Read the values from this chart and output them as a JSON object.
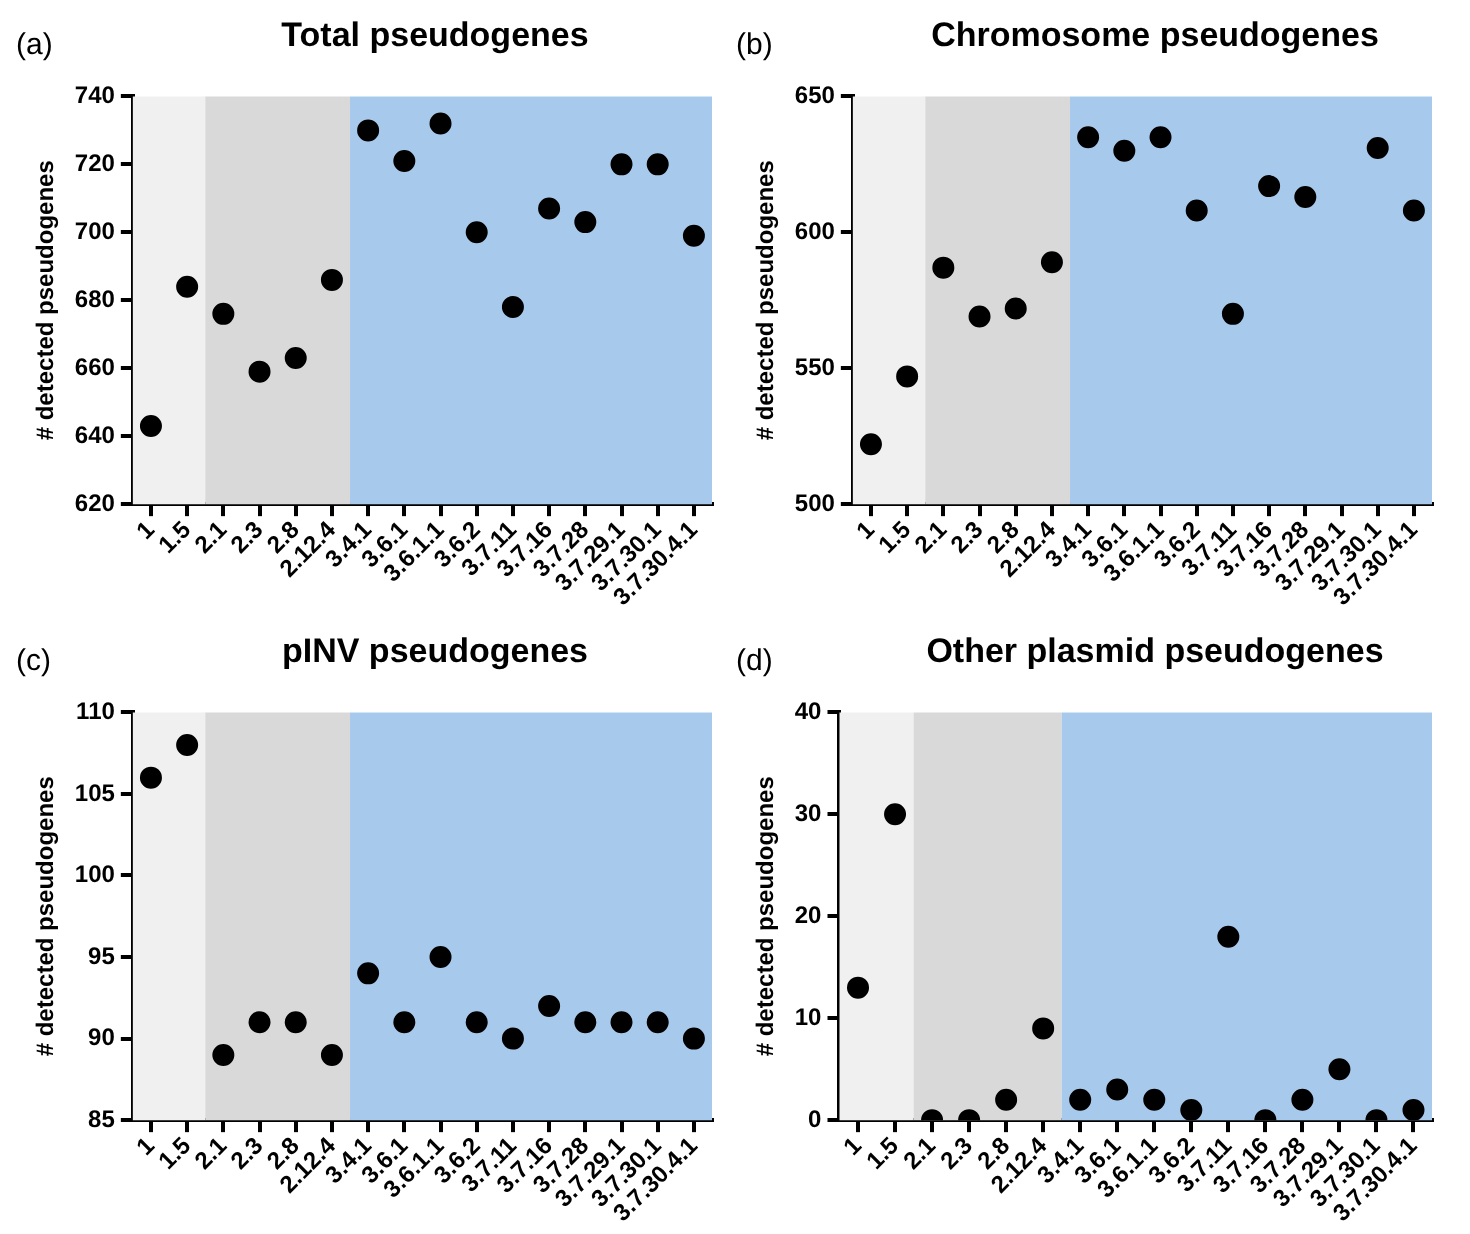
{
  "chart_data": [
    {
      "type": "scatter",
      "title": "Total pseudogenes",
      "ylabel": "# detected pseudogenes",
      "annotations": [
        "(a)"
      ],
      "categories": [
        "1",
        "1.5",
        "2.1",
        "2.3",
        "2.8",
        "2.12.4",
        "3.4.1",
        "3.6.1",
        "3.6.1.1",
        "3.6.2",
        "3.7.11",
        "3.7.16",
        "3.7.28",
        "3.7.29.1",
        "3.7.30.1",
        "3.7.30.4.1"
      ],
      "series": [
        {
          "color": "#000000",
          "values": [
            643,
            684,
            676,
            659,
            663,
            686,
            730,
            721,
            732,
            700,
            678,
            707,
            703,
            720,
            720,
            699
          ]
        }
      ],
      "ylim": [
        620,
        740
      ],
      "yticks": [
        620,
        640,
        660,
        680,
        700,
        720,
        740
      ],
      "grid": false,
      "marker": "circle",
      "bands": [
        {
          "axis": "x",
          "from": "1",
          "to": "1.5",
          "color": "#f0f0f0"
        },
        {
          "axis": "x",
          "from": "2.1",
          "to": "2.12.4",
          "color": "#d9d9d9"
        },
        {
          "axis": "x",
          "from": "3.4.1",
          "to": "3.7.30.4.1",
          "color": "#a7c9ec"
        }
      ]
    },
    {
      "type": "scatter",
      "title": "Chromosome pseudogenes",
      "ylabel": "# detected pseudogenes",
      "annotations": [
        "(b)"
      ],
      "categories": [
        "1",
        "1.5",
        "2.1",
        "2.3",
        "2.8",
        "2.12.4",
        "3.4.1",
        "3.6.1",
        "3.6.1.1",
        "3.6.2",
        "3.7.11",
        "3.7.16",
        "3.7.28",
        "3.7.29.1",
        "3.7.30.1",
        "3.7.30.4.1"
      ],
      "series": [
        {
          "color": "#000000",
          "values": [
            522,
            547,
            587,
            569,
            572,
            589,
            635,
            630,
            635,
            608,
            570,
            617,
            613,
            null,
            631,
            608
          ]
        }
      ],
      "ylim": [
        500,
        650
      ],
      "yticks": [
        500,
        550,
        600,
        650
      ],
      "grid": false,
      "marker": "circle",
      "bands": [
        {
          "axis": "x",
          "from": "1",
          "to": "1.5",
          "color": "#f0f0f0"
        },
        {
          "axis": "x",
          "from": "2.1",
          "to": "2.12.4",
          "color": "#d9d9d9"
        },
        {
          "axis": "x",
          "from": "3.4.1",
          "to": "3.7.30.4.1",
          "color": "#a7c9ec"
        }
      ]
    },
    {
      "type": "scatter",
      "title": "pINV pseudogenes",
      "ylabel": "# detected pseudogenes",
      "annotations": [
        "(c)"
      ],
      "categories": [
        "1",
        "1.5",
        "2.1",
        "2.3",
        "2.8",
        "2.12.4",
        "3.4.1",
        "3.6.1",
        "3.6.1.1",
        "3.6.2",
        "3.7.11",
        "3.7.16",
        "3.7.28",
        "3.7.29.1",
        "3.7.30.1",
        "3.7.30.4.1"
      ],
      "series": [
        {
          "color": "#000000",
          "values": [
            106,
            108,
            89,
            91,
            91,
            89,
            94,
            91,
            95,
            91,
            90,
            92,
            91,
            91,
            91,
            90
          ]
        }
      ],
      "ylim": [
        85,
        110
      ],
      "yticks": [
        85,
        90,
        95,
        100,
        105,
        110
      ],
      "grid": false,
      "marker": "circle",
      "bands": [
        {
          "axis": "x",
          "from": "1",
          "to": "1.5",
          "color": "#f0f0f0"
        },
        {
          "axis": "x",
          "from": "2.1",
          "to": "2.12.4",
          "color": "#d9d9d9"
        },
        {
          "axis": "x",
          "from": "3.4.1",
          "to": "3.7.30.4.1",
          "color": "#a7c9ec"
        }
      ]
    },
    {
      "type": "scatter",
      "title": "Other plasmid pseudogenes",
      "ylabel": "# detected pseudogenes",
      "annotations": [
        "(d)"
      ],
      "categories": [
        "1",
        "1.5",
        "2.1",
        "2.3",
        "2.8",
        "2.12.4",
        "3.4.1",
        "3.6.1",
        "3.6.1.1",
        "3.6.2",
        "3.7.11",
        "3.7.16",
        "3.7.28",
        "3.7.29.1",
        "3.7.30.1",
        "3.7.30.4.1"
      ],
      "series": [
        {
          "color": "#000000",
          "values": [
            13,
            30,
            0,
            0,
            2,
            9,
            2,
            3,
            2,
            1,
            18,
            0,
            2,
            5,
            0,
            1
          ]
        }
      ],
      "ylim": [
        0,
        40
      ],
      "yticks": [
        0,
        10,
        20,
        30,
        40
      ],
      "grid": false,
      "marker": "circle",
      "bands": [
        {
          "axis": "x",
          "from": "1",
          "to": "1.5",
          "color": "#f0f0f0"
        },
        {
          "axis": "x",
          "from": "2.1",
          "to": "2.12.4",
          "color": "#d9d9d9"
        },
        {
          "axis": "x",
          "from": "3.4.1",
          "to": "3.7.30.4.1",
          "color": "#a7c9ec"
        }
      ]
    }
  ]
}
